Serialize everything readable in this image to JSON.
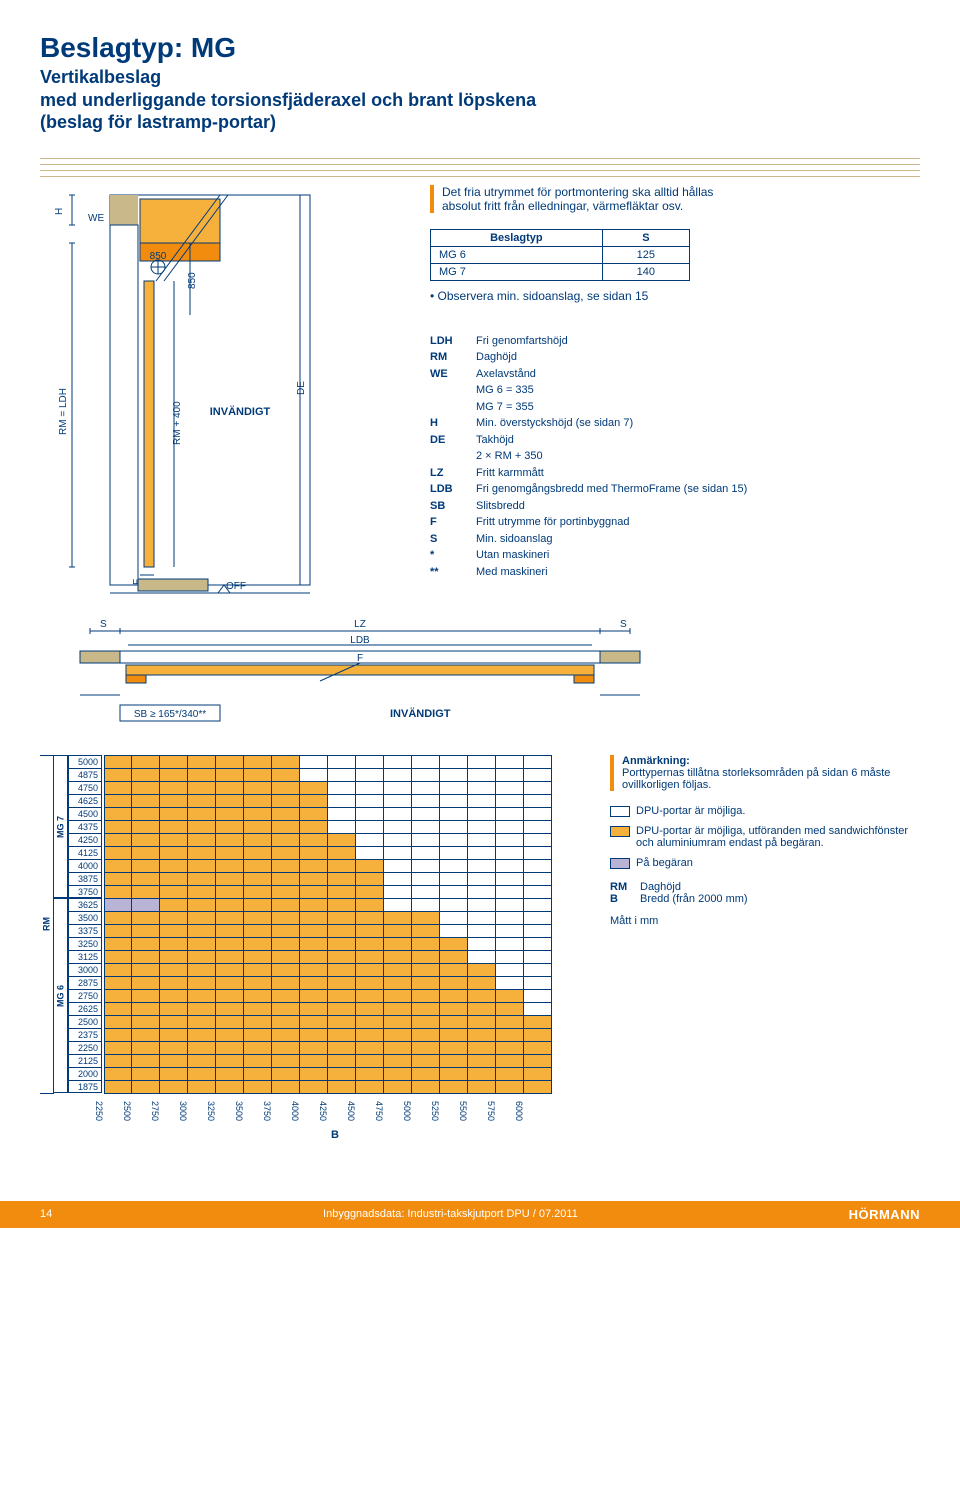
{
  "header": {
    "title": "Beslagtyp: MG",
    "subtitle_line1": "Vertikalbeslag",
    "subtitle_line2": "med underliggande torsionsfjäderaxel och brant löpskena",
    "subtitle_line3": "(beslag för lastramp-portar)"
  },
  "callout": {
    "line1": "Det fria utrymmet för portmontering ska alltid hållas",
    "line2": "absolut fritt från elledningar, värmefläktar osv."
  },
  "beslag_table": {
    "head_beslagtyp": "Beslagtyp",
    "head_s": "S",
    "rows": [
      {
        "name": "MG 6",
        "s": "125"
      },
      {
        "name": "MG 7",
        "s": "140"
      }
    ]
  },
  "observe": "• Observera min. sidoanslag, se sidan 15",
  "diagram_labels": {
    "H": "H",
    "WE": "WE",
    "RM_eq_LDH": "RM = LDH",
    "F": "F",
    "RM_plus_400": "RM + 400",
    "v850_left": "850",
    "v850_right": "850",
    "INVANDIGT": "INVÄNDIGT",
    "DE": "DE",
    "OFF": "OFF",
    "S": "S",
    "LZ": "LZ",
    "LDB": "LDB",
    "Fh": "F",
    "SB_label": "SB ≥ 165*/340**",
    "INVANDIGT2": "INVÄNDIGT"
  },
  "defs": [
    {
      "k": "LDH",
      "v": "Fri genomfartshöjd"
    },
    {
      "k": "RM",
      "v": "Daghöjd"
    },
    {
      "k": "WE",
      "v": "Axelavstånd"
    },
    {
      "k": "",
      "v": "MG 6 = 335"
    },
    {
      "k": "",
      "v": "MG 7 = 355"
    },
    {
      "k": "H",
      "v": "Min. överstyckshöjd (se sidan 7)"
    },
    {
      "k": "DE",
      "v": "Takhöjd"
    },
    {
      "k": "",
      "v": "2 × RM + 350"
    },
    {
      "k": "LZ",
      "v": "Fritt karmmått"
    },
    {
      "k": "LDB",
      "v": "Fri genomgångsbredd med ThermoFrame (se sidan 15)"
    },
    {
      "k": "SB",
      "v": "Slitsbredd"
    },
    {
      "k": "F",
      "v": "Fritt utrymme för portinbyggnad"
    },
    {
      "k": "S",
      "v": "Min. sidoanslag"
    },
    {
      "k": "*",
      "v": "Utan maskineri"
    },
    {
      "k": "**",
      "v": "Med maskineri"
    }
  ],
  "chart": {
    "y_values": [
      5000,
      4875,
      4750,
      4625,
      4500,
      4375,
      4250,
      4125,
      4000,
      3875,
      3750,
      3625,
      3500,
      3375,
      3250,
      3125,
      3000,
      2875,
      2750,
      2625,
      2500,
      2375,
      2250,
      2125,
      2000,
      1875
    ],
    "mg7_count": 11,
    "mg6_count": 15,
    "x_values": [
      2250,
      2500,
      2750,
      3000,
      3250,
      3500,
      3750,
      4000,
      4250,
      4500,
      4750,
      5000,
      5250,
      5500,
      5750,
      6000
    ],
    "x_title": "B",
    "rm_label": "RM",
    "mg7_label": "MG 7",
    "mg6_label": "MG 6",
    "fill_rows": [
      {
        "cols": 7,
        "color": "#f6b13d"
      },
      {
        "cols": 7,
        "color": "#f6b13d"
      },
      {
        "cols": 8,
        "color": "#f6b13d"
      },
      {
        "cols": 8,
        "color": "#f6b13d"
      },
      {
        "cols": 8,
        "color": "#f6b13d"
      },
      {
        "cols": 8,
        "color": "#f6b13d"
      },
      {
        "cols": 9,
        "color": "#f6b13d"
      },
      {
        "cols": 9,
        "color": "#f6b13d"
      },
      {
        "cols": 10,
        "color": "#f6b13d"
      },
      {
        "cols": 10,
        "color": "#f6b13d"
      },
      {
        "cols": 10,
        "color": "#f6b13d"
      },
      {
        "cols": 10,
        "color": "#f6b13d",
        "special": true,
        "scol": 2
      },
      {
        "cols": 12,
        "color": "#f6b13d"
      },
      {
        "cols": 12,
        "color": "#f6b13d"
      },
      {
        "cols": 13,
        "color": "#f6b13d"
      },
      {
        "cols": 13,
        "color": "#f6b13d"
      },
      {
        "cols": 14,
        "color": "#f6b13d"
      },
      {
        "cols": 14,
        "color": "#f6b13d"
      },
      {
        "cols": 15,
        "color": "#f6b13d"
      },
      {
        "cols": 15,
        "color": "#f6b13d"
      },
      {
        "cols": 16,
        "color": "#f6b13d"
      },
      {
        "cols": 16,
        "color": "#f6b13d"
      },
      {
        "cols": 16,
        "color": "#f6b13d"
      },
      {
        "cols": 16,
        "color": "#f6b13d"
      },
      {
        "cols": 16,
        "color": "#f6b13d"
      },
      {
        "cols": 16,
        "color": "#f6b13d"
      }
    ]
  },
  "notes": {
    "anm_title": "Anmärkning:",
    "anm_text": "Porttypernas tillåtna storleksområden på sidan 6 måste ovillkorligen följas.",
    "sw1": {
      "color": "#ffffff",
      "text": "DPU-portar är möjliga."
    },
    "sw2": {
      "color": "#f6b13d",
      "text": "DPU-portar är möjliga, utföranden med sandwichfönster och aluminiumram endast på begäran."
    },
    "sw3": {
      "color": "#b9b3d6",
      "text": "På begäran"
    },
    "defs": [
      {
        "k": "RM",
        "v": "Daghöjd"
      },
      {
        "k": "B",
        "v": "Bredd (från 2000 mm)",
        "bold": true
      }
    ],
    "unit": "Mått i mm"
  },
  "footer": {
    "page": "14",
    "text": "Inbyggnadsdata: Industri-takskjutport DPU / 07.2011",
    "logo": "HÖRMANN"
  },
  "colors": {
    "blue": "#003a78",
    "orange": "#f28c0f",
    "orange_fill": "#f6b13d",
    "tan": "#c9b98a",
    "lilac": "#b9b3d6"
  }
}
